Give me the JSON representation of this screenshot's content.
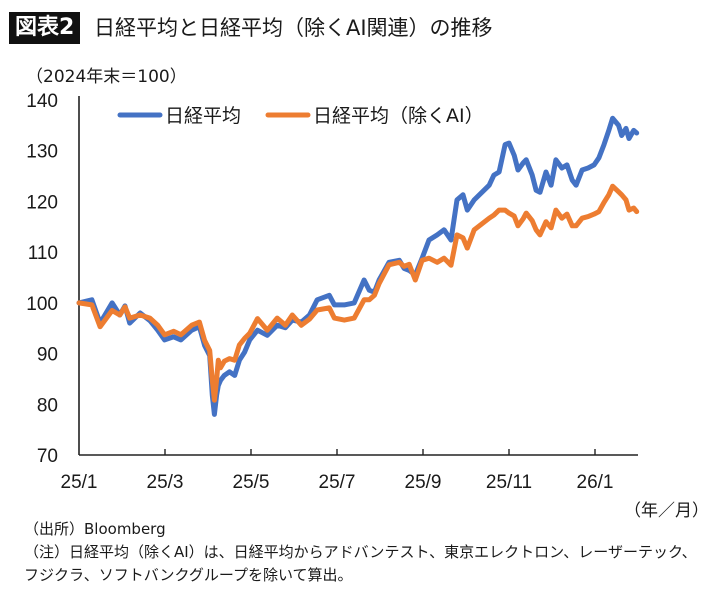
{
  "figure": {
    "badge": "図表2",
    "title": "日経平均と日経平均（除くAI関連）の推移",
    "unit_label": "（2024年末＝100）",
    "x_unit_label": "（年／月）",
    "source": "（出所）Bloomberg",
    "note": "（注）日経平均（除くAI）は、日経平均からアドバンテスト、東京エレクトロン、レーザーテック、フジクラ、ソフトバンクグループを除いて算出。"
  },
  "chart_data": {
    "type": "line",
    "title": "日経平均と日経平均（除くAI関連）の推移",
    "xlabel": "（年／月）",
    "ylabel": "（2024年末＝100）",
    "x_unit": "months since 2025/1",
    "xlim": [
      0,
      13.0
    ],
    "ylim": [
      70,
      140
    ],
    "yticks": [
      70,
      80,
      90,
      100,
      110,
      120,
      130,
      140
    ],
    "xticks": [
      {
        "value": 0,
        "label": "25/1"
      },
      {
        "value": 2,
        "label": "25/3"
      },
      {
        "value": 4,
        "label": "25/5"
      },
      {
        "value": 6,
        "label": "25/7"
      },
      {
        "value": 8,
        "label": "25/9"
      },
      {
        "value": 10,
        "label": "25/11"
      },
      {
        "value": 12,
        "label": "26/1"
      }
    ],
    "grid": false,
    "legend_position": "top-left",
    "series": [
      {
        "name": "日経平均",
        "color": "#4472C4",
        "x": [
          0,
          0.3,
          0.49,
          0.77,
          0.95,
          1.07,
          1.18,
          1.42,
          1.65,
          1.83,
          1.99,
          2.2,
          2.37,
          2.62,
          2.8,
          2.92,
          3.04,
          3.1,
          3.15,
          3.2,
          3.24,
          3.29,
          3.38,
          3.5,
          3.62,
          3.73,
          3.85,
          3.97,
          4.15,
          4.38,
          4.61,
          4.8,
          4.96,
          5.17,
          5.36,
          5.54,
          5.82,
          5.94,
          6.17,
          6.4,
          6.63,
          6.75,
          6.87,
          6.98,
          7.21,
          7.45,
          7.56,
          7.68,
          7.82,
          7.98,
          8.14,
          8.33,
          8.49,
          8.65,
          8.79,
          8.93,
          9.03,
          9.19,
          9.54,
          9.65,
          9.77,
          9.91,
          10.0,
          10.12,
          10.21,
          10.33,
          10.4,
          10.54,
          10.63,
          10.72,
          10.86,
          10.98,
          11.09,
          11.23,
          11.35,
          11.47,
          11.56,
          11.7,
          11.84,
          11.98,
          12.09,
          12.21,
          12.32,
          12.41,
          12.55,
          12.62,
          12.72,
          12.79,
          12.9,
          12.97
        ],
        "values": [
          100,
          100.6,
          96,
          100,
          97.6,
          99.4,
          96,
          98,
          96.5,
          94.6,
          92.7,
          93.3,
          92.7,
          94.6,
          95.3,
          91.6,
          89.6,
          81.8,
          78,
          81.8,
          83.7,
          84.7,
          85.7,
          86.4,
          85.7,
          88.7,
          90.3,
          92.7,
          94.6,
          93.6,
          95.6,
          95.1,
          96.6,
          96.2,
          97.6,
          100.6,
          101.5,
          99.6,
          99.6,
          100,
          104.5,
          102.5,
          102.1,
          104.5,
          108,
          108.4,
          106.8,
          106.4,
          105.5,
          108.8,
          112.4,
          113.4,
          114.4,
          112.4,
          120.3,
          121.3,
          118.3,
          120.3,
          123.2,
          125.2,
          125.8,
          131.2,
          131.5,
          129.1,
          126.2,
          127.6,
          128.2,
          125.2,
          122.2,
          121.8,
          125.8,
          123.2,
          128.2,
          126.6,
          127.2,
          124.2,
          123.2,
          126.2,
          126.6,
          127.2,
          128.6,
          131.2,
          134,
          136.4,
          135,
          133,
          134.4,
          132.4,
          134,
          133.5
        ]
      },
      {
        "name": "日経平均（除くAI）",
        "color": "#ED7D31",
        "x": [
          0,
          0.3,
          0.49,
          0.77,
          0.95,
          1.07,
          1.18,
          1.42,
          1.65,
          1.83,
          1.99,
          2.2,
          2.37,
          2.62,
          2.8,
          2.92,
          3.04,
          3.1,
          3.15,
          3.2,
          3.24,
          3.29,
          3.38,
          3.5,
          3.62,
          3.73,
          3.85,
          3.97,
          4.15,
          4.38,
          4.61,
          4.8,
          4.96,
          5.17,
          5.36,
          5.54,
          5.82,
          5.94,
          6.17,
          6.4,
          6.63,
          6.75,
          6.87,
          6.98,
          7.21,
          7.45,
          7.56,
          7.68,
          7.82,
          7.98,
          8.14,
          8.33,
          8.49,
          8.65,
          8.79,
          8.93,
          9.03,
          9.19,
          9.54,
          9.65,
          9.77,
          9.91,
          10.0,
          10.12,
          10.21,
          10.33,
          10.4,
          10.54,
          10.63,
          10.72,
          10.86,
          10.98,
          11.09,
          11.23,
          11.35,
          11.47,
          11.56,
          11.7,
          11.84,
          11.98,
          12.09,
          12.21,
          12.32,
          12.41,
          12.55,
          12.62,
          12.72,
          12.79,
          12.9,
          12.97
        ],
        "values": [
          100,
          99.6,
          95.3,
          98.5,
          97.6,
          99.2,
          97,
          97.6,
          97,
          95.6,
          93.7,
          94.4,
          93.7,
          95.6,
          96.2,
          92.6,
          90.6,
          84.8,
          80.8,
          84.8,
          88.7,
          87.2,
          88.5,
          89,
          88.7,
          91.7,
          93,
          94,
          96.9,
          94.6,
          97,
          95.6,
          97.6,
          95.6,
          96.8,
          98.6,
          99,
          97,
          96.6,
          97,
          100.6,
          100.6,
          101.5,
          103.8,
          107.5,
          108,
          107.2,
          107.6,
          104.5,
          108.4,
          108.8,
          108,
          108.8,
          107.4,
          113.4,
          112.8,
          110.8,
          114.4,
          116.7,
          117.3,
          118.3,
          118.3,
          117.7,
          117.1,
          115.2,
          116.6,
          117.7,
          116.2,
          114.4,
          113.4,
          116,
          114.8,
          118.3,
          116.7,
          117.5,
          115.2,
          115.2,
          116.7,
          117,
          117.5,
          118,
          119.8,
          121.3,
          123,
          121.9,
          121.3,
          120.3,
          118.3,
          118.7,
          118
        ]
      }
    ]
  }
}
